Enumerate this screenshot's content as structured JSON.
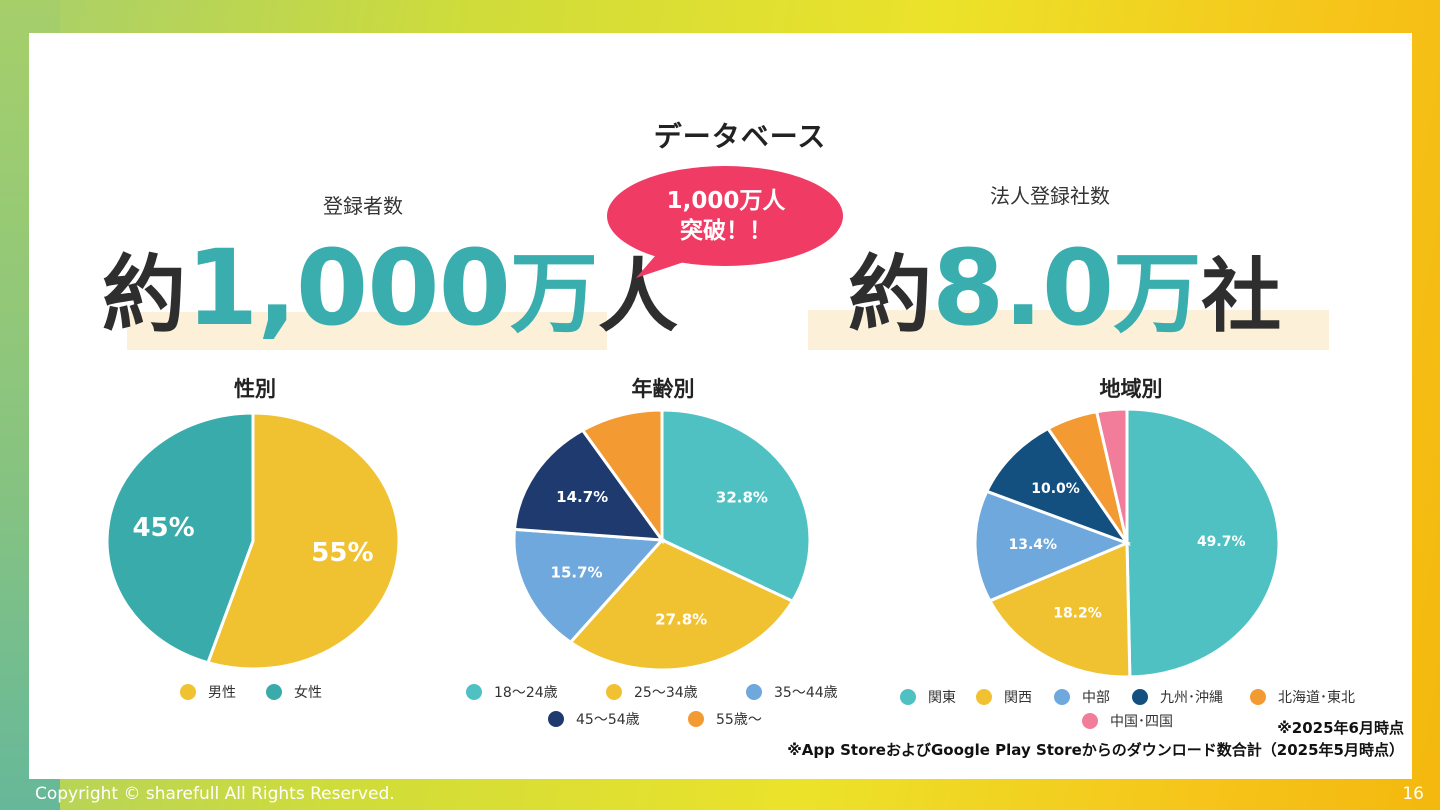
{
  "header": {
    "title": "データベース"
  },
  "registrants": {
    "label": "登録者数",
    "prefix": "約",
    "number": "1,000",
    "unit1": "万",
    "unit2": "人"
  },
  "bubble": {
    "line1": "1,000万人",
    "line2": "突破！！",
    "color": "#f03b64"
  },
  "corporations": {
    "label": "法人登録社数",
    "prefix": "約",
    "number": "8.0",
    "unit1": "万",
    "unit2": "社"
  },
  "colors": {
    "accent": "#3aaeae",
    "highlight": "#fdf0d8"
  },
  "chart_data": [
    {
      "type": "pie",
      "title": "性別",
      "slices": [
        {
          "label": "男性",
          "value": 55,
          "display": "55%",
          "color": "#f0c232"
        },
        {
          "label": "女性",
          "value": 45,
          "display": "45%",
          "color": "#3aabab"
        }
      ]
    },
    {
      "type": "pie",
      "title": "年齢別",
      "slices": [
        {
          "label": "18～24歳",
          "value": 32.8,
          "display": "32.8%",
          "color": "#4fc1c3"
        },
        {
          "label": "25～34歳",
          "value": 27.8,
          "display": "27.8%",
          "color": "#f0c232"
        },
        {
          "label": "35～44歳",
          "value": 15.7,
          "display": "15.7%",
          "color": "#6fa8dc"
        },
        {
          "label": "45～54歳",
          "value": 14.7,
          "display": "14.7%",
          "color": "#1f3a6e"
        },
        {
          "label": "55歳～",
          "value": 9.0,
          "display": "",
          "color": "#f39a33"
        }
      ]
    },
    {
      "type": "pie",
      "title": "地域別",
      "slices": [
        {
          "label": "関東",
          "value": 49.7,
          "display": "49.7%",
          "color": "#4fc1c3"
        },
        {
          "label": "関西",
          "value": 18.2,
          "display": "18.2%",
          "color": "#f0c232"
        },
        {
          "label": "中部",
          "value": 13.4,
          "display": "13.4%",
          "color": "#6fa8dc"
        },
        {
          "label": "九州･沖縄",
          "value": 10.0,
          "display": "10.0%",
          "color": "#13507f"
        },
        {
          "label": "北海道･東北",
          "value": 5.5,
          "display": "",
          "color": "#f39a33"
        },
        {
          "label": "中国･四国",
          "value": 3.2,
          "display": "",
          "color": "#f27d9a"
        }
      ]
    }
  ],
  "notes": {
    "date_note": "※2025年6月時点",
    "source_note": "※App StoreおよびGoogle Play Storeからのダウンロード数合計（2025年5月時点）"
  },
  "footer": {
    "copyright": "Copyright © sharefull All Rights Reserved.",
    "page_number": "16"
  }
}
